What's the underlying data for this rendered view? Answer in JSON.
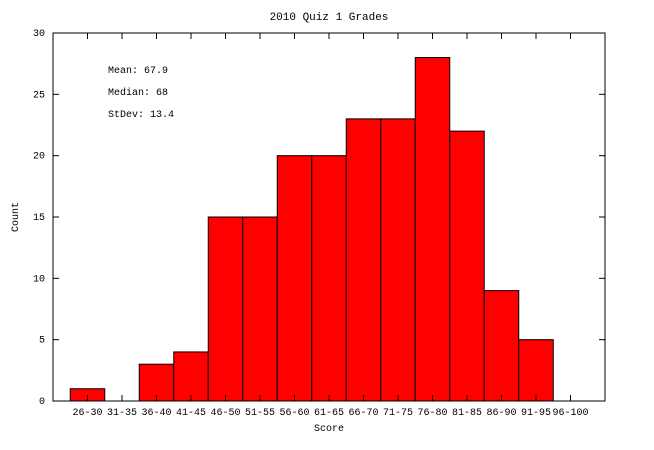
{
  "chart_data": {
    "type": "bar",
    "title": "2010 Quiz 1 Grades",
    "xlabel": "Score",
    "ylabel": "Count",
    "ylim": [
      0,
      30
    ],
    "yticks": [
      0,
      5,
      10,
      15,
      20,
      25,
      30
    ],
    "grid": false,
    "categories": [
      "26-30",
      "31-35",
      "36-40",
      "41-45",
      "46-50",
      "51-55",
      "56-60",
      "61-65",
      "66-70",
      "71-75",
      "76-80",
      "81-85",
      "86-90",
      "91-95",
      "96-100"
    ],
    "values": [
      1,
      0,
      3,
      4,
      15,
      15,
      20,
      20,
      23,
      23,
      28,
      22,
      9,
      5,
      0
    ],
    "bar_color": "#ff0000",
    "annotations": [
      "Mean: 67.9",
      "Median: 68",
      "StDev: 13.4"
    ]
  }
}
